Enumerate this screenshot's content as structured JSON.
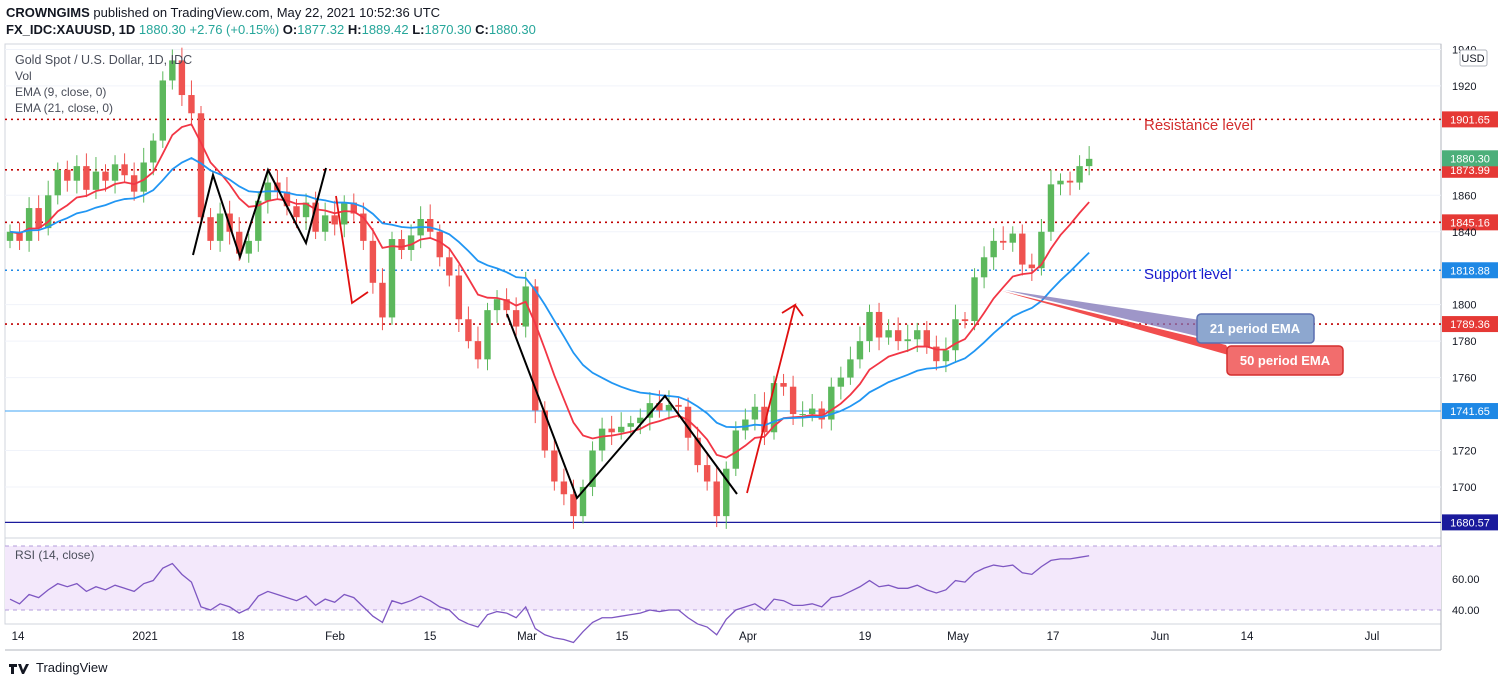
{
  "header": {
    "publisher": "CROWNGIMS",
    "published_text": "published on TradingView.com, May 22, 2021 10:52:36 UTC",
    "symbol": "FX_IDC:XAUUSD, 1D",
    "last": "1880.30",
    "change": "+2.76 (+0.15%)",
    "o_label": "O:",
    "o": "1877.32",
    "h_label": "H:",
    "h": "1889.42",
    "l_label": "L:",
    "l": "1870.30",
    "c_label": "C:",
    "c": "1880.30"
  },
  "legend": {
    "title": "Gold Spot / U.S. Dollar, 1D, IDC",
    "vol": "Vol",
    "ema9": "EMA (9, close, 0)",
    "ema21": "EMA (21, close, 0)",
    "rsi": "RSI (14, close)"
  },
  "currency_button": "USD",
  "footer": {
    "brand": "TradingView"
  },
  "colors": {
    "up": "#26a69a",
    "up_fill": "#5cb85c",
    "down": "#ef5350",
    "ema9": "#f23645",
    "ema21": "#2196f3",
    "rsi": "#7e57c2",
    "red_dotted": "#c00000",
    "blue_dotted": "#1e88e5",
    "annotation_blue": "#1a1acc"
  },
  "chart_data": {
    "type": "candlestick",
    "price_axis": {
      "ylim": [
        1672,
        1943
      ],
      "ticks": [
        1940,
        1920,
        1860,
        1840,
        1800,
        1780,
        1760,
        1720,
        1700
      ]
    },
    "x_axis_labels": [
      "14",
      "2021",
      "18",
      "Feb",
      "15",
      "Mar",
      "15",
      "Apr",
      "19",
      "May",
      "17",
      "Jun",
      "14",
      "Jul"
    ],
    "levels": [
      {
        "value": 1901.65,
        "label": "1901.65",
        "style": "red-dotted"
      },
      {
        "value": 1873.99,
        "label": "1873.99",
        "style": "red-dotted"
      },
      {
        "value": 1845.16,
        "label": "1845.16",
        "style": "red-dotted"
      },
      {
        "value": 1818.88,
        "label": "1818.88",
        "style": "blue-dotted"
      },
      {
        "value": 1789.36,
        "label": "1789.36",
        "style": "red-dotted"
      },
      {
        "value": 1741.65,
        "label": "1741.65",
        "style": "blue-solid"
      },
      {
        "value": 1680.57,
        "label": "1680.57",
        "style": "navy-solid"
      }
    ],
    "last_price": {
      "value": 1880.3,
      "label": "1880.30"
    },
    "annotations": {
      "resistance": "Resistance level",
      "support": "Support level",
      "ema21_box": "21 period EMA",
      "ema50_box": "50 period EMA"
    },
    "closes": [
      1840,
      1835,
      1853,
      1842,
      1860,
      1874,
      1868,
      1876,
      1863,
      1873,
      1868,
      1877,
      1871,
      1862,
      1878,
      1890,
      1923,
      1934,
      1915,
      1905,
      1848,
      1835,
      1850,
      1840,
      1828,
      1835,
      1857,
      1867,
      1862,
      1854,
      1848,
      1856,
      1840,
      1849,
      1844,
      1856,
      1850,
      1835,
      1812,
      1793,
      1836,
      1830,
      1838,
      1847,
      1840,
      1826,
      1816,
      1792,
      1780,
      1770,
      1797,
      1803,
      1797,
      1788,
      1810,
      1742,
      1720,
      1703,
      1696,
      1684,
      1700,
      1720,
      1732,
      1730,
      1733,
      1735,
      1738,
      1746,
      1742,
      1745,
      1744,
      1727,
      1712,
      1703,
      1684,
      1710,
      1731,
      1737,
      1744,
      1730,
      1757,
      1755,
      1740,
      1740,
      1743,
      1737,
      1755,
      1760,
      1770,
      1780,
      1796,
      1782,
      1786,
      1780,
      1781,
      1786,
      1777,
      1769,
      1775,
      1792,
      1791,
      1815,
      1826,
      1835,
      1834,
      1839,
      1822,
      1820,
      1840,
      1866,
      1868,
      1867,
      1876,
      1880
    ],
    "ema9_dir": "rising",
    "rsi_axis": {
      "ticks": [
        60.0,
        40.0
      ]
    },
    "rsi_values": [
      47,
      44,
      50,
      48,
      53,
      57,
      55,
      57,
      52,
      55,
      53,
      56,
      54,
      52,
      57,
      59,
      67,
      70,
      63,
      58,
      42,
      40,
      44,
      42,
      38,
      41,
      49,
      52,
      50,
      48,
      46,
      49,
      43,
      47,
      45,
      50,
      48,
      42,
      36,
      32,
      46,
      44,
      46,
      49,
      46,
      42,
      40,
      34,
      31,
      29,
      37,
      39,
      38,
      35,
      42,
      28,
      24,
      22,
      21,
      19,
      26,
      32,
      35,
      35,
      36,
      37,
      38,
      40,
      39,
      40,
      40,
      35,
      31,
      29,
      24,
      34,
      40,
      42,
      44,
      40,
      47,
      46,
      43,
      43,
      44,
      42,
      48,
      49,
      52,
      55,
      59,
      55,
      56,
      54,
      54,
      56,
      53,
      51,
      53,
      59,
      58,
      64,
      67,
      69,
      68,
      69,
      64,
      63,
      68,
      72,
      73,
      73,
      74,
      75
    ]
  }
}
